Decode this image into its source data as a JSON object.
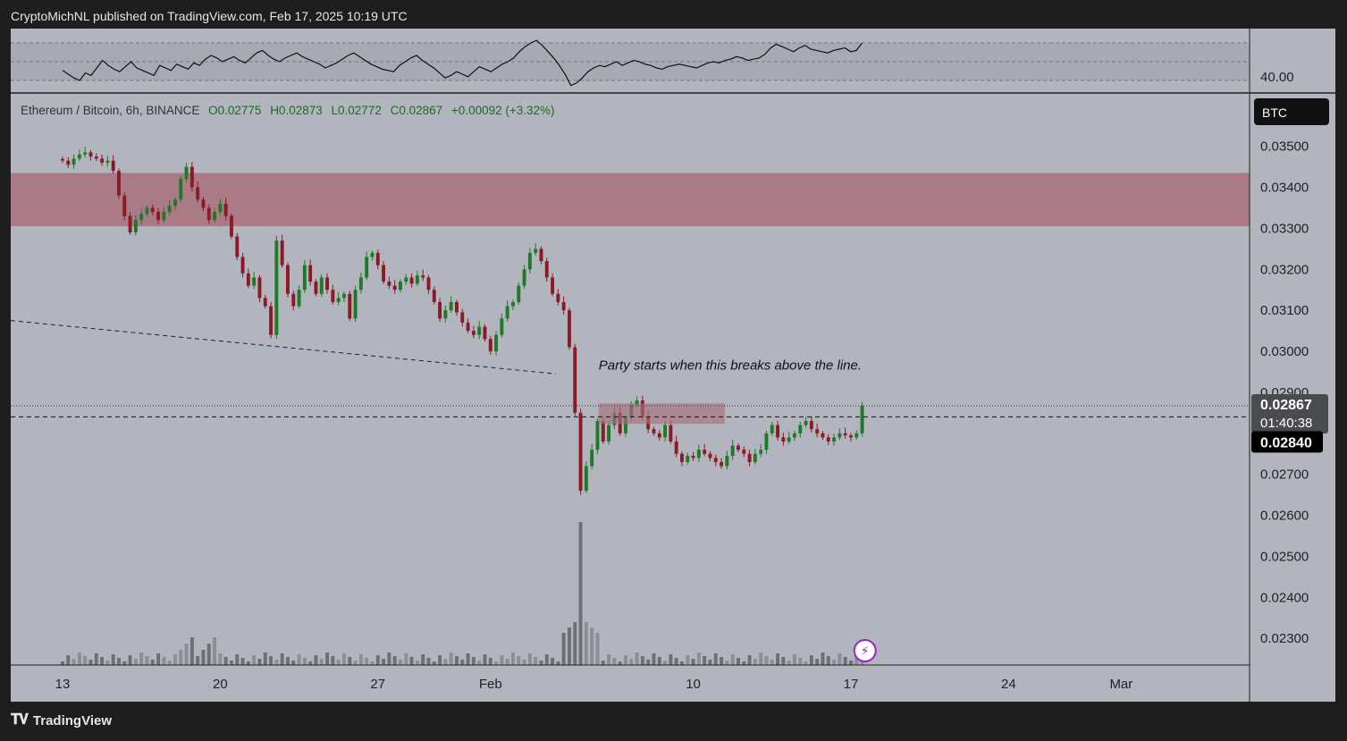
{
  "header": {
    "published": "CryptoMichNL published on TradingView.com, Feb 17, 2025 10:19 UTC"
  },
  "footer": {
    "brand": "TradingView",
    "logo": "tv-logo-icon"
  },
  "legend": {
    "symbol": "Ethereum / Bitcoin, 6h, BINANCE",
    "open": "O0.02775",
    "high": "H0.02873",
    "low": "L0.02772",
    "close": "C0.02867",
    "change": "+0.00092 (+3.32%)"
  },
  "colors": {
    "up": "#1f7a28",
    "down": "#8c1a25",
    "zone": "#a8707c",
    "background": "#b2b5be",
    "frame": "#1e1e1e",
    "flash_icon": "#a020c0"
  },
  "chart_data": {
    "type": "candlestick",
    "symbol": "ETHBTC",
    "interval": "6h",
    "currency_badge": "BTC",
    "y_ticks": [
      "0.03500",
      "0.03400",
      "0.03300",
      "0.03200",
      "0.03100",
      "0.03000",
      "0.02900",
      "0.02700",
      "0.02600",
      "0.02500",
      "0.02400",
      "0.02300"
    ],
    "ylim": [
      0.02235,
      0.0363
    ],
    "x_ticks": [
      {
        "label": "13",
        "day": 0
      },
      {
        "label": "20",
        "day": 7
      },
      {
        "label": "27",
        "day": 14
      },
      {
        "label": "Feb",
        "day": 19
      },
      {
        "label": "10",
        "day": 28
      },
      {
        "label": "17",
        "day": 35
      },
      {
        "label": "24",
        "day": 42
      },
      {
        "label": "Mar",
        "day": 47
      }
    ],
    "xlim_days": [
      -2.3,
      52.7
    ],
    "last_price": "0.02867",
    "countdown": "01:40:38",
    "price_line": "0.02840",
    "close_series": [
      0.03465,
      0.03455,
      0.0347,
      0.0348,
      0.03485,
      0.03475,
      0.0347,
      0.0346,
      0.03465,
      0.0344,
      0.0338,
      0.0333,
      0.0329,
      0.0332,
      0.03335,
      0.0335,
      0.0334,
      0.0332,
      0.0334,
      0.03355,
      0.0337,
      0.0342,
      0.0345,
      0.034,
      0.0337,
      0.0335,
      0.0332,
      0.0334,
      0.0336,
      0.0333,
      0.0328,
      0.0323,
      0.0319,
      0.0316,
      0.0318,
      0.0313,
      0.0311,
      0.0304,
      0.0327,
      0.0321,
      0.0314,
      0.0311,
      0.0315,
      0.0321,
      0.0317,
      0.0314,
      0.0318,
      0.0315,
      0.0312,
      0.0313,
      0.0314,
      0.0308,
      0.0315,
      0.0318,
      0.0323,
      0.0324,
      0.0321,
      0.0317,
      0.0316,
      0.0315,
      0.0317,
      0.0318,
      0.03165,
      0.03185,
      0.0318,
      0.0315,
      0.0312,
      0.0308,
      0.031,
      0.0312,
      0.03095,
      0.0307,
      0.0305,
      0.0304,
      0.0306,
      0.0303,
      0.03,
      0.0304,
      0.0308,
      0.0311,
      0.0312,
      0.0316,
      0.032,
      0.0324,
      0.0325,
      0.0322,
      0.0318,
      0.0314,
      0.0312,
      0.031,
      0.0301,
      0.0285,
      0.0266,
      0.0272,
      0.0276,
      0.0283,
      0.0278,
      0.0282,
      0.0285,
      0.028,
      0.0284,
      0.0287,
      0.0288,
      0.0284,
      0.0281,
      0.028,
      0.0279,
      0.0282,
      0.0278,
      0.0275,
      0.0273,
      0.02745,
      0.0274,
      0.0276,
      0.0275,
      0.0274,
      0.0273,
      0.0272,
      0.02745,
      0.0277,
      0.0276,
      0.0275,
      0.0273,
      0.0275,
      0.0276,
      0.028,
      0.0282,
      0.0279,
      0.0278,
      0.0279,
      0.028,
      0.0282,
      0.0283,
      0.0281,
      0.028,
      0.0279,
      0.0278,
      0.0279,
      0.028,
      0.02795,
      0.0279,
      0.028,
      0.02867
    ],
    "volume_spike_index": 92,
    "resistance_zone": [
      0.03305,
      0.03435
    ],
    "breakout_box": [
      0.02823,
      0.02873
    ],
    "annotation": "Party starts when this breaks above the line.",
    "trendline": [
      [
        -2.3,
        0.03075
      ],
      [
        21.9,
        0.02945
      ]
    ],
    "indicator_pane": {
      "label": "40.00",
      "series": [
        48,
        45,
        42,
        40,
        46,
        44,
        50,
        56,
        52,
        49,
        47,
        51,
        55,
        50,
        48,
        46,
        44,
        52,
        50,
        48,
        53,
        51,
        49,
        54,
        52,
        57,
        60,
        58,
        55,
        57,
        59,
        56,
        54,
        58,
        62,
        64,
        60,
        57,
        55,
        58,
        60,
        62,
        59,
        57,
        55,
        53,
        50,
        52,
        54,
        57,
        60,
        62,
        59,
        56,
        53,
        51,
        49,
        48,
        47,
        52,
        55,
        58,
        60,
        56,
        53,
        50,
        46,
        42,
        44,
        47,
        45,
        43,
        47,
        51,
        49,
        47,
        50,
        53,
        55,
        58,
        63,
        67,
        70,
        72,
        68,
        63,
        58,
        52,
        45,
        36,
        38,
        42,
        47,
        50,
        52,
        51,
        53,
        55,
        52,
        54,
        56,
        55,
        53,
        52,
        50,
        49,
        51,
        52,
        53,
        52,
        51,
        50,
        52,
        54,
        55,
        54,
        56,
        57,
        59,
        58,
        56,
        57,
        58,
        61,
        66,
        69,
        67,
        65,
        63,
        66,
        68,
        65,
        64,
        63,
        62,
        64,
        65,
        66,
        63,
        64,
        70
      ]
    },
    "flash_icon": "lightning-icon"
  }
}
